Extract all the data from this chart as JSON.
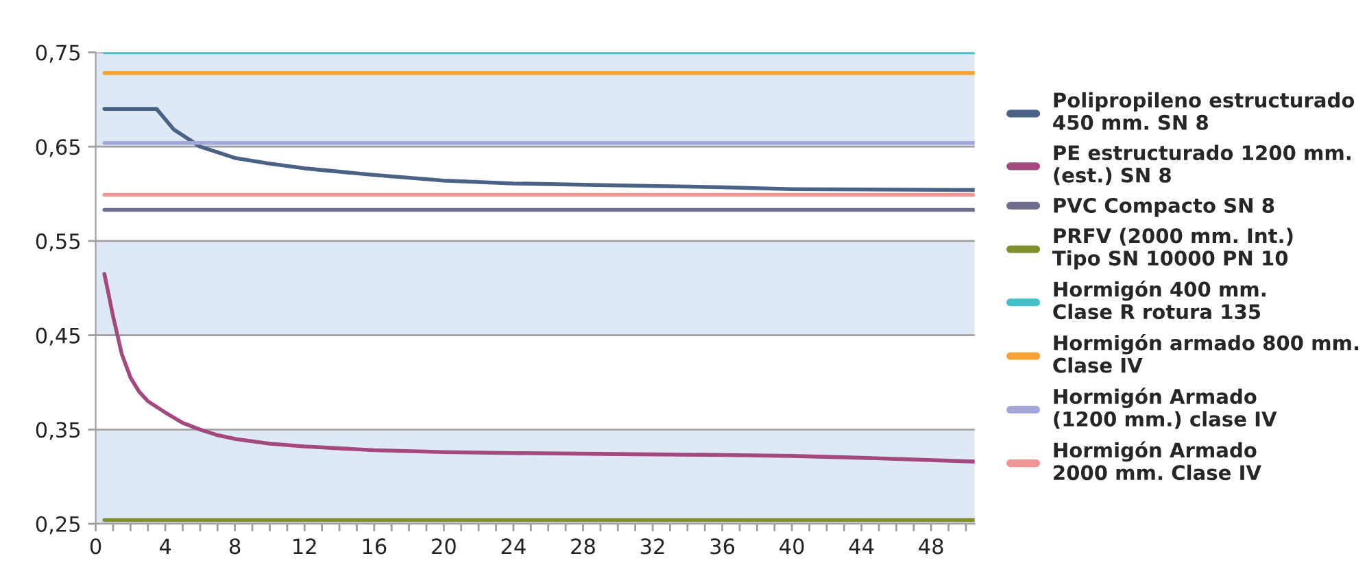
{
  "chart_data": {
    "type": "line",
    "xlim": [
      0,
      50.5
    ],
    "xticks": [
      0,
      {
        "value": 1,
        "label": null
      },
      {
        "value": 2,
        "label": null
      },
      {
        "value": 3,
        "label": null
      },
      4,
      {
        "value": 5,
        "label": null
      },
      {
        "value": 6,
        "label": null
      },
      {
        "value": 7,
        "label": null
      },
      8,
      {
        "value": 9,
        "label": null
      },
      {
        "value": 10,
        "label": null
      },
      {
        "value": 11,
        "label": null
      },
      12,
      {
        "value": 13,
        "label": null
      },
      {
        "value": 14,
        "label": null
      },
      {
        "value": 15,
        "label": null
      },
      16,
      {
        "value": 17,
        "label": null
      },
      {
        "value": 18,
        "label": null
      },
      {
        "value": 19,
        "label": null
      },
      20,
      {
        "value": 21,
        "label": null
      },
      {
        "value": 22,
        "label": null
      },
      {
        "value": 23,
        "label": null
      },
      24,
      {
        "value": 25,
        "label": null
      },
      {
        "value": 26,
        "label": null
      },
      {
        "value": 27,
        "label": null
      },
      28,
      {
        "value": 29,
        "label": null
      },
      {
        "value": 30,
        "label": null
      },
      {
        "value": 31,
        "label": null
      },
      32,
      {
        "value": 33,
        "label": null
      },
      {
        "value": 34,
        "label": null
      },
      {
        "value": 35,
        "label": null
      },
      36,
      {
        "value": 37,
        "label": null
      },
      {
        "value": 38,
        "label": null
      },
      {
        "value": 39,
        "label": null
      },
      40,
      {
        "value": 41,
        "label": null
      },
      {
        "value": 42,
        "label": null
      },
      {
        "value": 43,
        "label": null
      },
      44,
      {
        "value": 45,
        "label": null
      },
      {
        "value": 46,
        "label": null
      },
      {
        "value": 47,
        "label": null
      },
      48,
      {
        "value": 49,
        "label": null
      },
      {
        "value": 50,
        "label": null
      }
    ],
    "ylim": [
      0.25,
      0.75
    ],
    "yticks": [
      {
        "value": 0.25,
        "label": "0,25"
      },
      {
        "value": 0.35,
        "label": "0,35"
      },
      {
        "value": 0.45,
        "label": "0,45"
      },
      {
        "value": 0.55,
        "label": "0,55"
      },
      {
        "value": 0.65,
        "label": "0,65"
      },
      {
        "value": 0.75,
        "label": "0,75"
      }
    ],
    "grid": "y",
    "legend": "right",
    "line_style": "solid",
    "bands": [
      {
        "axis": "y",
        "from": 0.25,
        "to": 0.35,
        "color": "#dfe8f5"
      },
      {
        "axis": "y",
        "from": 0.45,
        "to": 0.55,
        "color": "#dfe8f5"
      },
      {
        "axis": "y",
        "from": 0.65,
        "to": 0.75,
        "color": "#dfe8f5"
      }
    ],
    "series": [
      {
        "name": "Polipropileno estructurado\n450 mm. SN 8",
        "color": "#4a6285",
        "x": [
          0.5,
          3.5,
          4.5,
          6,
          8,
          10,
          12,
          16,
          20,
          24,
          30,
          36,
          40,
          50.5
        ],
        "values": [
          0.69,
          0.69,
          0.668,
          0.65,
          0.638,
          0.632,
          0.627,
          0.62,
          0.614,
          0.611,
          0.609,
          0.607,
          0.605,
          0.604
        ]
      },
      {
        "name": "PE estructurado 1200 mm.\n(est.) SN 8",
        "color": "#a3497e",
        "x": [
          0.5,
          1,
          1.5,
          2,
          2.5,
          3,
          4,
          5,
          6,
          7,
          8,
          10,
          12,
          16,
          20,
          24,
          30,
          36,
          40,
          44,
          50.5
        ],
        "values": [
          0.515,
          0.47,
          0.43,
          0.405,
          0.39,
          0.38,
          0.368,
          0.357,
          0.35,
          0.344,
          0.34,
          0.335,
          0.332,
          0.328,
          0.326,
          0.325,
          0.324,
          0.323,
          0.322,
          0.32,
          0.316
        ]
      },
      {
        "name": "PVC Compacto SN 8",
        "color": "#6e6f8f",
        "x": [
          0.5,
          50.5
        ],
        "values": [
          0.583,
          0.583
        ]
      },
      {
        "name": "PRFV (2000 mm. Int.)\nTipo SN 10000 PN 10",
        "color": "#7f8f2e",
        "x": [
          0.5,
          50.5
        ],
        "values": [
          0.254,
          0.254
        ]
      },
      {
        "name": "Hormigón 400 mm.\nClase R rotura 135",
        "color": "#45c0c6",
        "x": [
          0.5,
          50.5
        ],
        "values": [
          0.75,
          0.75
        ]
      },
      {
        "name": "Hormigón armado 800 mm.\nClase IV",
        "color": "#f4a335",
        "x": [
          0.5,
          50.5
        ],
        "values": [
          0.728,
          0.728
        ]
      },
      {
        "name": "Hormigón Armado\n(1200 mm.) clase IV",
        "color": "#a3a8d8",
        "x": [
          0.5,
          50.5
        ],
        "values": [
          0.654,
          0.654
        ]
      },
      {
        "name": "Hormigón Armado\n2000 mm. Clase IV",
        "color": "#f19496",
        "x": [
          0.5,
          50.5
        ],
        "values": [
          0.599,
          0.599
        ]
      }
    ]
  }
}
